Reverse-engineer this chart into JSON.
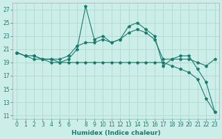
{
  "xlabel": "Humidex (Indice chaleur)",
  "x": [
    0,
    1,
    2,
    3,
    4,
    5,
    6,
    7,
    8,
    9,
    10,
    11,
    12,
    13,
    14,
    15,
    16,
    17,
    18,
    19,
    20,
    21,
    22,
    23
  ],
  "line1": [
    20.5,
    20.0,
    20.0,
    19.5,
    19.0,
    19.0,
    19.5,
    21.0,
    27.5,
    22.5,
    23.0,
    22.0,
    22.5,
    24.5,
    25.0,
    24.0,
    23.0,
    18.5,
    19.5,
    20.0,
    20.0,
    18.0,
    16.0,
    11.5
  ],
  "line2": [
    20.5,
    20.0,
    20.0,
    19.5,
    19.5,
    19.5,
    20.0,
    21.5,
    22.0,
    22.0,
    22.5,
    22.0,
    22.5,
    23.5,
    24.0,
    23.5,
    22.5,
    19.5,
    19.5,
    19.5,
    19.5,
    19.0,
    18.5,
    19.5
  ],
  "line3": [
    20.5,
    20.0,
    19.5,
    19.5,
    19.5,
    19.0,
    19.0,
    19.0,
    19.0,
    19.0,
    19.0,
    19.0,
    19.0,
    19.0,
    19.0,
    19.0,
    19.0,
    19.0,
    18.5,
    18.0,
    17.5,
    16.5,
    13.5,
    11.5
  ],
  "line_color": "#1a7a6e",
  "bg_color": "#cceee8",
  "grid_color": "#aad4cc",
  "ylim": [
    10.5,
    28.0
  ],
  "xlim": [
    -0.5,
    23.5
  ],
  "yticks": [
    11,
    13,
    15,
    17,
    19,
    21,
    23,
    25,
    27
  ],
  "xticks": [
    0,
    1,
    2,
    3,
    4,
    5,
    6,
    7,
    8,
    9,
    10,
    11,
    12,
    13,
    14,
    15,
    16,
    17,
    18,
    19,
    20,
    21,
    22,
    23
  ],
  "xtick_labels": [
    "0",
    "1",
    "2",
    "3",
    "4",
    "5",
    "6",
    "",
    "8",
    "9",
    "10",
    "11",
    "12",
    "13",
    "14",
    "15",
    "16",
    "17",
    "18",
    "19",
    "20",
    "21",
    "22",
    "23"
  ],
  "marker": "*",
  "markersize": 3,
  "linewidth": 0.8,
  "tick_fontsize": 5.5,
  "xlabel_fontsize": 6.5
}
